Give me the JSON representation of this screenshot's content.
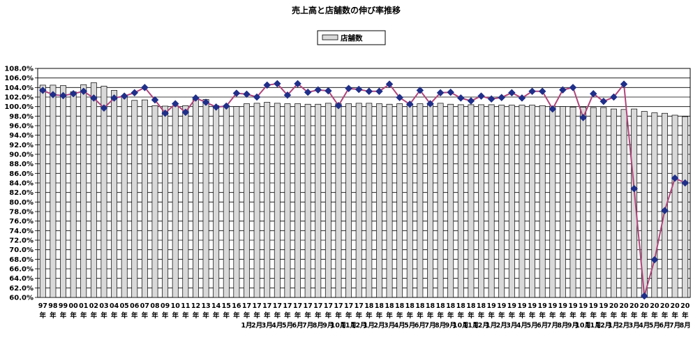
{
  "chart_data": {
    "type": "bar",
    "title": "売上高と店舗数の伸び率推移",
    "legend_position": "top-center",
    "ylim": [
      60,
      108
    ],
    "y_step": 2,
    "y_tick_format": "0.0%",
    "grid": true,
    "categories": [
      [
        "97",
        "年",
        ""
      ],
      [
        "98",
        "年",
        ""
      ],
      [
        "99",
        "年",
        ""
      ],
      [
        "00",
        "年",
        ""
      ],
      [
        "01",
        "年",
        ""
      ],
      [
        "02",
        "年",
        ""
      ],
      [
        "03",
        "年",
        ""
      ],
      [
        "04",
        "年",
        ""
      ],
      [
        "05",
        "年",
        ""
      ],
      [
        "06",
        "年",
        ""
      ],
      [
        "07",
        "年",
        ""
      ],
      [
        "08",
        "年",
        ""
      ],
      [
        "09",
        "年",
        ""
      ],
      [
        "10",
        "年",
        ""
      ],
      [
        "11",
        "年",
        ""
      ],
      [
        "12",
        "年",
        ""
      ],
      [
        "13",
        "年",
        ""
      ],
      [
        "14",
        "年",
        ""
      ],
      [
        "15",
        "年",
        ""
      ],
      [
        "16",
        "年",
        ""
      ],
      [
        "17",
        "年",
        "1月"
      ],
      [
        "17",
        "年",
        "2月"
      ],
      [
        "17",
        "年",
        "3月"
      ],
      [
        "17",
        "年",
        "4月"
      ],
      [
        "17",
        "年",
        "5月"
      ],
      [
        "17",
        "年",
        "6月"
      ],
      [
        "17",
        "年",
        "7月"
      ],
      [
        "17",
        "年",
        "8月"
      ],
      [
        "17",
        "年",
        "9月"
      ],
      [
        "17",
        "年",
        "10月"
      ],
      [
        "17",
        "年",
        "11月"
      ],
      [
        "17",
        "年",
        "12月"
      ],
      [
        "18",
        "年",
        "1月"
      ],
      [
        "18",
        "年",
        "2月"
      ],
      [
        "18",
        "年",
        "3月"
      ],
      [
        "18",
        "年",
        "4月"
      ],
      [
        "18",
        "年",
        "5月"
      ],
      [
        "18",
        "年",
        "6月"
      ],
      [
        "18",
        "年",
        "7月"
      ],
      [
        "18",
        "年",
        "8月"
      ],
      [
        "18",
        "年",
        "9月"
      ],
      [
        "18",
        "年",
        "10月"
      ],
      [
        "18",
        "年",
        "11月"
      ],
      [
        "18",
        "年",
        "12月"
      ],
      [
        "19",
        "年",
        "1月"
      ],
      [
        "19",
        "年",
        "2月"
      ],
      [
        "19",
        "年",
        "3月"
      ],
      [
        "19",
        "年",
        "4月"
      ],
      [
        "19",
        "年",
        "5月"
      ],
      [
        "19",
        "年",
        "6月"
      ],
      [
        "19",
        "年",
        "7月"
      ],
      [
        "19",
        "年",
        "8月"
      ],
      [
        "19",
        "年",
        "9月"
      ],
      [
        "19",
        "年",
        "10月"
      ],
      [
        "19",
        "年",
        "11月"
      ],
      [
        "19",
        "年",
        "12月"
      ],
      [
        "20",
        "年",
        "1月"
      ],
      [
        "20",
        "年",
        "2月"
      ],
      [
        "20",
        "年",
        "3月"
      ],
      [
        "20",
        "年",
        "4月"
      ],
      [
        "20",
        "年",
        "5月"
      ],
      [
        "20",
        "年",
        "6月"
      ],
      [
        "20",
        "年",
        "7月"
      ],
      [
        "20",
        "年",
        "8月"
      ]
    ],
    "series": [
      {
        "name": "店舗数",
        "kind": "bar",
        "color": "#d9d9d9",
        "values": [
          104.5,
          104.5,
          104.4,
          103.1,
          104.6,
          105.0,
          104.3,
          103.4,
          102.3,
          101.3,
          101.4,
          100.2,
          100.1,
          100.1,
          100.2,
          101.5,
          101.5,
          100.2,
          100.1,
          100.0,
          100.6,
          100.7,
          100.9,
          100.7,
          100.6,
          100.6,
          100.5,
          100.5,
          100.7,
          100.6,
          100.6,
          100.7,
          100.7,
          100.6,
          100.5,
          100.6,
          100.6,
          100.6,
          100.6,
          100.7,
          100.5,
          100.4,
          100.4,
          100.4,
          100.4,
          100.3,
          100.3,
          100.3,
          100.3,
          100.2,
          100.1,
          100.0,
          99.9,
          99.9,
          99.8,
          99.8,
          99.5,
          99.4,
          99.5,
          99.0,
          98.7,
          98.6,
          98.2,
          97.9
        ]
      },
      {
        "name": "",
        "kind": "line",
        "color": "#b0457a",
        "marker_color": "#1f2f8a",
        "values": [
          103.4,
          102.5,
          102.3,
          102.7,
          103.2,
          101.8,
          99.7,
          101.8,
          102.2,
          102.9,
          104.0,
          101.4,
          98.6,
          100.6,
          98.8,
          101.8,
          100.9,
          99.9,
          100.1,
          102.8,
          102.6,
          102.0,
          104.5,
          104.8,
          102.4,
          104.8,
          103.0,
          103.5,
          103.3,
          100.2,
          103.8,
          103.6,
          103.2,
          103.2,
          104.7,
          101.9,
          100.5,
          103.4,
          100.6,
          102.9,
          103.0,
          101.8,
          101.2,
          102.2,
          101.6,
          101.9,
          102.9,
          101.8,
          103.2,
          103.2,
          99.5,
          103.5,
          104.0,
          97.7,
          102.7,
          101.1,
          102.0,
          104.7,
          82.8,
          60.3,
          67.9,
          78.2,
          85.0,
          84.0
        ]
      }
    ]
  }
}
